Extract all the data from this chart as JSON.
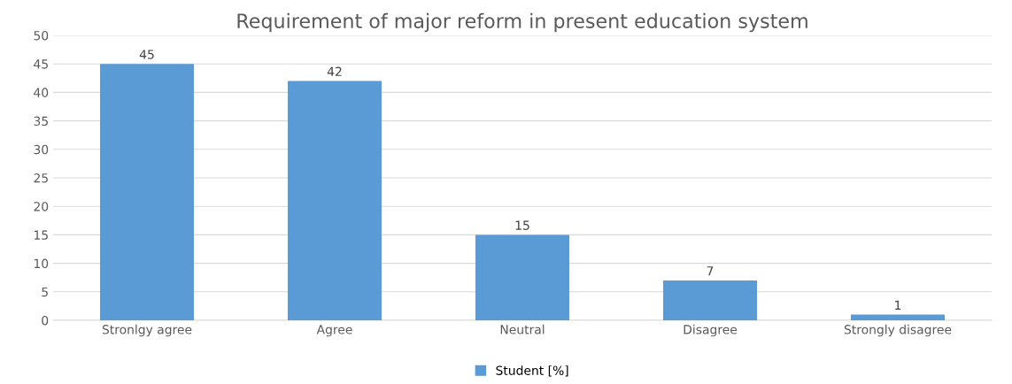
{
  "chart_data": {
    "type": "bar",
    "title": "Requirement of major reform in present education system",
    "categories": [
      "Stronlgy agree",
      "Agree",
      "Neutral",
      "Disagree",
      "Strongly disagree"
    ],
    "series": [
      {
        "name": "Student [%]",
        "color": "#5b9bd5",
        "values": [
          45,
          42,
          15,
          7,
          1
        ]
      }
    ],
    "ylim": [
      0,
      50
    ],
    "yticks": [
      0,
      5,
      10,
      15,
      20,
      25,
      30,
      35,
      40,
      45,
      50
    ],
    "grid": "y",
    "legend": "bottom",
    "data_labels": true
  }
}
